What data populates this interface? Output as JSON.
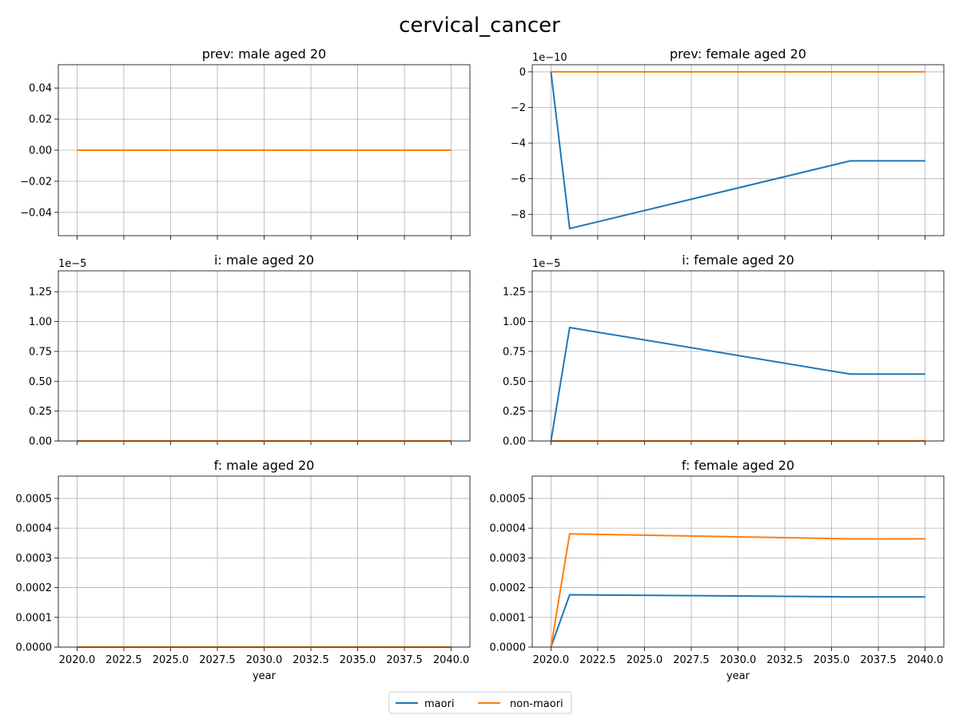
{
  "figure": {
    "title": "cervical_cancer",
    "xlabel": "year"
  },
  "legend": {
    "placement": "bottom-center",
    "entries": [
      {
        "name": "maori",
        "color": "#1f77b4"
      },
      {
        "name": "non-maori",
        "color": "#ff7f0e"
      }
    ]
  },
  "colors": {
    "maori": "#1f77b4",
    "non-maori": "#ff7f0e",
    "grid": "#b0b0b0"
  },
  "chart_data": [
    {
      "type": "line",
      "title": "prev: male aged 20",
      "grid": true,
      "xlim": [
        2019,
        2041
      ],
      "ylim": [
        -0.055,
        0.055
      ],
      "yticks": [
        -0.04,
        -0.02,
        0.0,
        0.02,
        0.04
      ],
      "ytick_labels": [
        "−0.04",
        "−0.02",
        "0.00",
        "0.02",
        "0.04"
      ],
      "offset_label": "",
      "series": [
        {
          "name": "maori",
          "x": [
            2020,
            2040
          ],
          "y": [
            0,
            0
          ]
        },
        {
          "name": "non-maori",
          "x": [
            2020,
            2040
          ],
          "y": [
            0,
            0
          ]
        }
      ]
    },
    {
      "type": "line",
      "title": "prev: female aged 20",
      "grid": true,
      "xlim": [
        2019,
        2041
      ],
      "ylim": [
        -9.2e-10,
        4e-11
      ],
      "yticks": [
        -8e-10,
        -6e-10,
        -4e-10,
        -2e-10,
        0
      ],
      "ytick_labels": [
        "−8",
        "−6",
        "−4",
        "−2",
        "0"
      ],
      "offset_label": "1e−10",
      "series": [
        {
          "name": "maori",
          "x": [
            2020,
            2021,
            2036,
            2040
          ],
          "y": [
            0,
            -8.8e-10,
            -5e-10,
            -5e-10
          ]
        },
        {
          "name": "non-maori",
          "x": [
            2020,
            2040
          ],
          "y": [
            0,
            0
          ]
        }
      ]
    },
    {
      "type": "line",
      "title": "i: male aged 20",
      "grid": true,
      "xlim": [
        2019,
        2041
      ],
      "ylim": [
        0,
        1.425e-05
      ],
      "yticks": [
        0,
        2.5e-06,
        5e-06,
        7.5e-06,
        1e-05,
        1.25e-05
      ],
      "ytick_labels": [
        "0.00",
        "0.25",
        "0.50",
        "0.75",
        "1.00",
        "1.25"
      ],
      "offset_label": "1e−5",
      "series": [
        {
          "name": "maori",
          "x": [
            2020,
            2040
          ],
          "y": [
            0,
            0
          ]
        },
        {
          "name": "non-maori",
          "x": [
            2020,
            2040
          ],
          "y": [
            0,
            0
          ]
        }
      ]
    },
    {
      "type": "line",
      "title": "i: female aged 20",
      "grid": true,
      "xlim": [
        2019,
        2041
      ],
      "ylim": [
        0,
        1.425e-05
      ],
      "yticks": [
        0,
        2.5e-06,
        5e-06,
        7.5e-06,
        1e-05,
        1.25e-05
      ],
      "ytick_labels": [
        "0.00",
        "0.25",
        "0.50",
        "0.75",
        "1.00",
        "1.25"
      ],
      "offset_label": "1e−5",
      "series": [
        {
          "name": "maori",
          "x": [
            2020,
            2021,
            2036,
            2040
          ],
          "y": [
            0,
            9.5e-06,
            5.6e-06,
            5.6e-06
          ]
        },
        {
          "name": "non-maori",
          "x": [
            2020,
            2040
          ],
          "y": [
            0,
            0
          ]
        }
      ]
    },
    {
      "type": "line",
      "title": "f: male aged 20",
      "grid": true,
      "xlim": [
        2019,
        2041
      ],
      "ylim": [
        0,
        0.000575
      ],
      "yticks": [
        0,
        0.0001,
        0.0002,
        0.0003,
        0.0004,
        0.0005
      ],
      "ytick_labels": [
        "0.0000",
        "0.0001",
        "0.0002",
        "0.0003",
        "0.0004",
        "0.0005"
      ],
      "offset_label": "",
      "series": [
        {
          "name": "maori",
          "x": [
            2020,
            2040
          ],
          "y": [
            0,
            0
          ]
        },
        {
          "name": "non-maori",
          "x": [
            2020,
            2040
          ],
          "y": [
            0,
            0
          ]
        }
      ]
    },
    {
      "type": "line",
      "title": "f: female aged 20",
      "grid": true,
      "xlim": [
        2019,
        2041
      ],
      "ylim": [
        0,
        0.000575
      ],
      "yticks": [
        0,
        0.0001,
        0.0002,
        0.0003,
        0.0004,
        0.0005
      ],
      "ytick_labels": [
        "0.0000",
        "0.0001",
        "0.0002",
        "0.0003",
        "0.0004",
        "0.0005"
      ],
      "offset_label": "",
      "series": [
        {
          "name": "maori",
          "x": [
            2020,
            2021,
            2036,
            2040
          ],
          "y": [
            0,
            0.000176,
            0.000169,
            0.000169
          ]
        },
        {
          "name": "non-maori",
          "x": [
            2020,
            2021,
            2036,
            2040
          ],
          "y": [
            0,
            0.000381,
            0.000364,
            0.000364
          ]
        }
      ]
    }
  ],
  "xticks": [
    2020,
    2022.5,
    2025,
    2027.5,
    2030,
    2032.5,
    2035,
    2037.5,
    2040
  ],
  "xtick_labels": [
    "2020.0",
    "2022.5",
    "2025.0",
    "2027.5",
    "2030.0",
    "2032.5",
    "2035.0",
    "2037.5",
    "2040.0"
  ]
}
